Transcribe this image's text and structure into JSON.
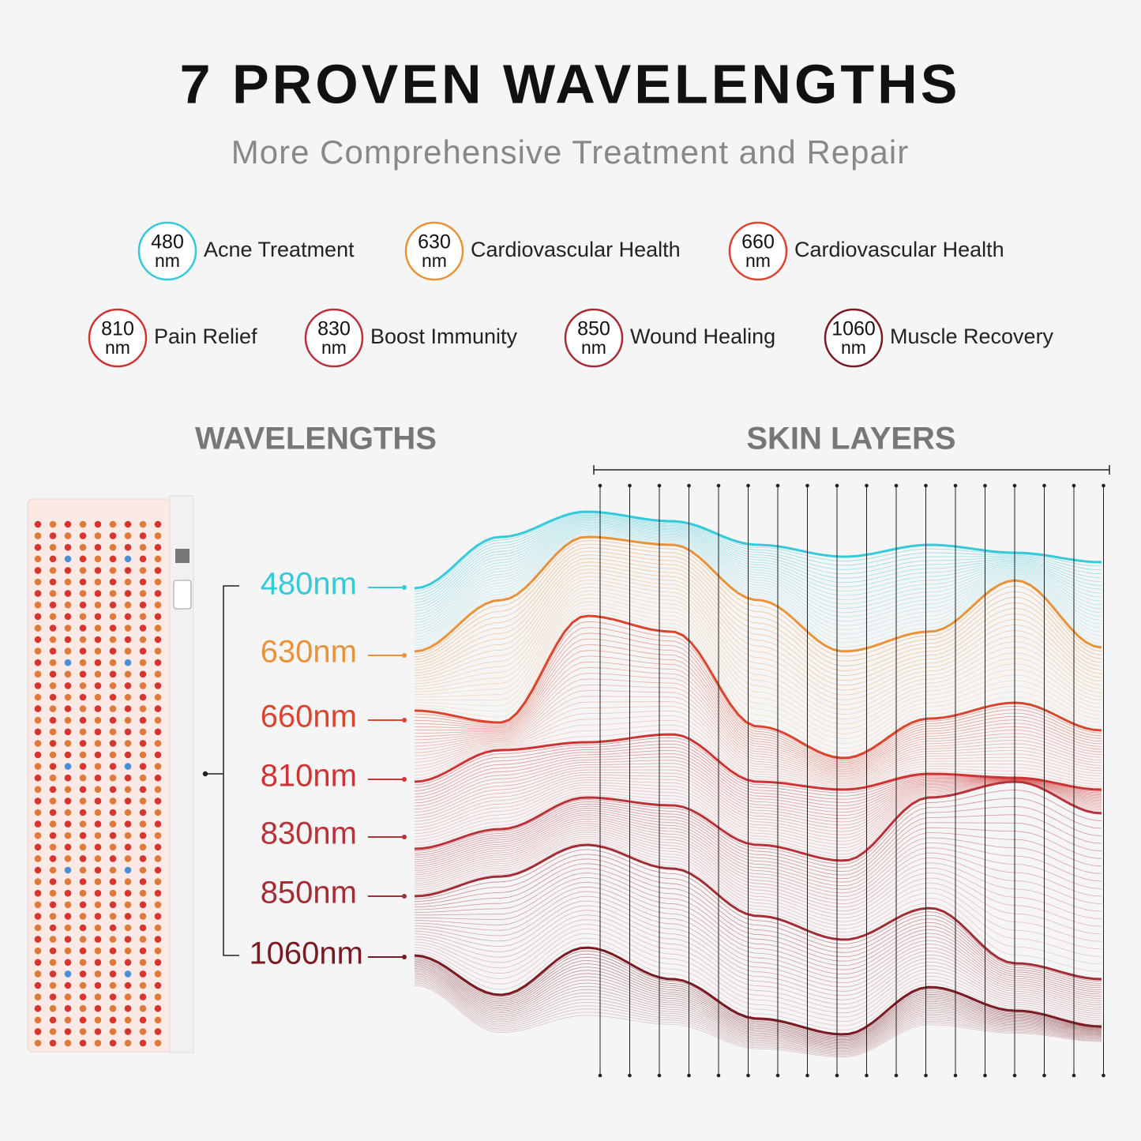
{
  "header": {
    "title": "7 PROVEN WAVELENGTHS",
    "subtitle": "More Comprehensive Treatment and Repair"
  },
  "badges": [
    {
      "number": "480",
      "unit": "nm",
      "label": "Acne Treatment",
      "color": "#35c9d9"
    },
    {
      "number": "630",
      "unit": "nm",
      "label": "Cardiovascular Health",
      "color": "#e8923a"
    },
    {
      "number": "660",
      "unit": "nm",
      "label": "Cardiovascular Health",
      "color": "#d9452f"
    },
    {
      "number": "810",
      "unit": "nm",
      "label": "Pain Relief",
      "color": "#cf3434"
    },
    {
      "number": "830",
      "unit": "nm",
      "label": "Boost Immunity",
      "color": "#b8323a"
    },
    {
      "number": "850",
      "unit": "nm",
      "label": "Wound Healing",
      "color": "#a32d36"
    },
    {
      "number": "1060",
      "unit": "nm",
      "label": "Muscle Recovery",
      "color": "#7a1a22"
    }
  ],
  "sections": {
    "left": "WAVELENGTHS",
    "right": "SKIN LAYERS"
  },
  "wavelengths": [
    {
      "label": "480nm",
      "color": "#35c9d9"
    },
    {
      "label": "630nm",
      "color": "#e8923a"
    },
    {
      "label": "660nm",
      "color": "#d9452f"
    },
    {
      "label": "810nm",
      "color": "#cf3434"
    },
    {
      "label": "830nm",
      "color": "#b8323a"
    },
    {
      "label": "850nm",
      "color": "#a32d36"
    },
    {
      "label": "1060nm",
      "color": "#7a1a22"
    }
  ]
}
